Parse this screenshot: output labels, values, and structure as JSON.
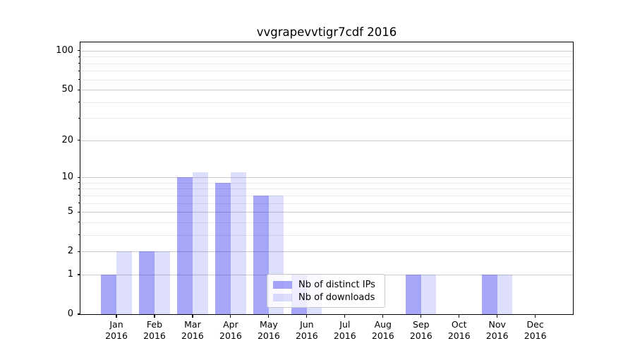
{
  "title": "vvgrapevvtigr7cdf 2016",
  "colors": {
    "bar_distinct_ips": "rgba(20,20,240,0.38)",
    "bar_downloads": "rgba(20,20,240,0.14)",
    "grid_major": "#cccccc",
    "grid_minor": "#ebebeb",
    "axis": "#000000"
  },
  "legend": {
    "items": [
      {
        "label": "Nb of distinct IPs",
        "series_key": "bar_distinct_ips"
      },
      {
        "label": "Nb of downloads",
        "series_key": "bar_downloads"
      }
    ]
  },
  "chart_data": {
    "type": "bar",
    "title": "vvgrapevvtigr7cdf 2016",
    "categories": [
      "Jan 2016",
      "Feb 2016",
      "Mar 2016",
      "Apr 2016",
      "May 2016",
      "Jun 2016",
      "Jul 2016",
      "Aug 2016",
      "Sep 2016",
      "Oct 2016",
      "Nov 2016",
      "Dec 2016"
    ],
    "series": [
      {
        "name": "Nb of distinct IPs",
        "values": [
          1,
          2,
          10,
          9,
          7,
          1,
          0,
          0,
          1,
          0,
          1,
          0
        ]
      },
      {
        "name": "Nb of downloads",
        "values": [
          2,
          2,
          11,
          11,
          7,
          1,
          0,
          0,
          1,
          0,
          1,
          0
        ]
      }
    ],
    "yscale": "log1p",
    "ylim": [
      0,
      116
    ],
    "yticks_major": [
      0,
      1,
      2,
      5,
      10,
      20,
      50,
      100
    ],
    "yticks_minor": [
      3,
      4,
      6,
      7,
      8,
      9,
      30,
      40,
      60,
      70,
      80,
      90
    ],
    "grid": "horizontal",
    "legend_position": "inside-bottom-center",
    "xlabel": "",
    "ylabel": ""
  }
}
